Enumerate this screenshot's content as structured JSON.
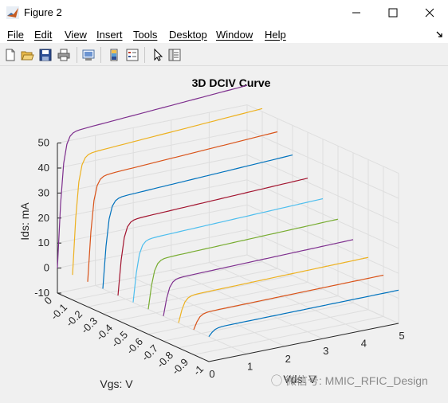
{
  "window": {
    "title": "Figure 2"
  },
  "menu": [
    "File",
    "Edit",
    "View",
    "Insert",
    "Tools",
    "Desktop",
    "Window",
    "Help"
  ],
  "toolbar_icons": [
    "new-figure-icon",
    "open-file-icon",
    "save-icon",
    "print-icon",
    "print-preview-icon",
    "colorbar-icon",
    "legend-icon",
    "pointer-icon",
    "property-editor-icon"
  ],
  "watermark": "微信号: MMIC_RFIC_Design",
  "chart_data": {
    "type": "line3d",
    "title": "3D DCIV Curve",
    "xlabel": "Vds: V",
    "ylabel": "Vgs: V",
    "zlabel": "Ids: mA",
    "xlim": [
      0,
      5
    ],
    "ylim": [
      -1,
      0
    ],
    "zlim": [
      -10,
      50
    ],
    "x_ticks": [
      "0",
      "1",
      "2",
      "3",
      "4",
      "5"
    ],
    "y_ticks": [
      "0",
      "-0.1",
      "-0.2",
      "-0.3",
      "-0.4",
      "-0.5",
      "-0.6",
      "-0.7",
      "-0.8",
      "-0.9",
      "-1"
    ],
    "z_ticks": [
      "-10",
      "0",
      "10",
      "20",
      "30",
      "40",
      "50"
    ],
    "grid": true,
    "series": [
      {
        "vgs": 0.0,
        "ids_max": 53,
        "color": "#7e2f8e"
      },
      {
        "vgs": -0.1,
        "ids_max": 47,
        "color": "#edb120"
      },
      {
        "vgs": -0.2,
        "ids_max": 41,
        "color": "#d95319"
      },
      {
        "vgs": -0.3,
        "ids_max": 35,
        "color": "#0072bd"
      },
      {
        "vgs": -0.4,
        "ids_max": 29,
        "color": "#a2142f"
      },
      {
        "vgs": -0.5,
        "ids_max": 24,
        "color": "#4dbeee"
      },
      {
        "vgs": -0.6,
        "ids_max": 19,
        "color": "#77ac30"
      },
      {
        "vgs": -0.7,
        "ids_max": 14,
        "color": "#7e2f8e"
      },
      {
        "vgs": -0.8,
        "ids_max": 10,
        "color": "#edb120"
      },
      {
        "vgs": -0.9,
        "ids_max": 6,
        "color": "#d95319"
      },
      {
        "vgs": -1.0,
        "ids_max": 3,
        "color": "#0072bd"
      }
    ]
  }
}
